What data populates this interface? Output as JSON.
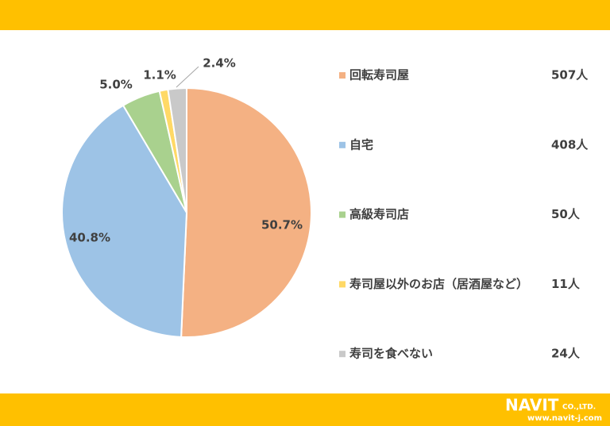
{
  "chart_data": {
    "type": "pie",
    "categories": [
      "回転寿司屋",
      "自宅",
      "高級寿司店",
      "寿司屋以外のお店（居酒屋など）",
      "寿司を食べない"
    ],
    "values": [
      50.7,
      40.8,
      5.0,
      1.1,
      2.4
    ],
    "value_labels": [
      "50.7%",
      "40.8%",
      "5.0%",
      "1.1%",
      "2.4%"
    ],
    "colors": [
      "#f4b183",
      "#9dc3e6",
      "#a9d18e",
      "#ffd966",
      "#c9c9c9"
    ],
    "counts": [
      507,
      408,
      50,
      11,
      24
    ],
    "count_labels": [
      "507人",
      "408人",
      "50人",
      "11人",
      "24人"
    ]
  },
  "footer": {
    "logo": "NAVIT",
    "company": "CO.,LTD.",
    "url": "www.navit-j.com"
  }
}
